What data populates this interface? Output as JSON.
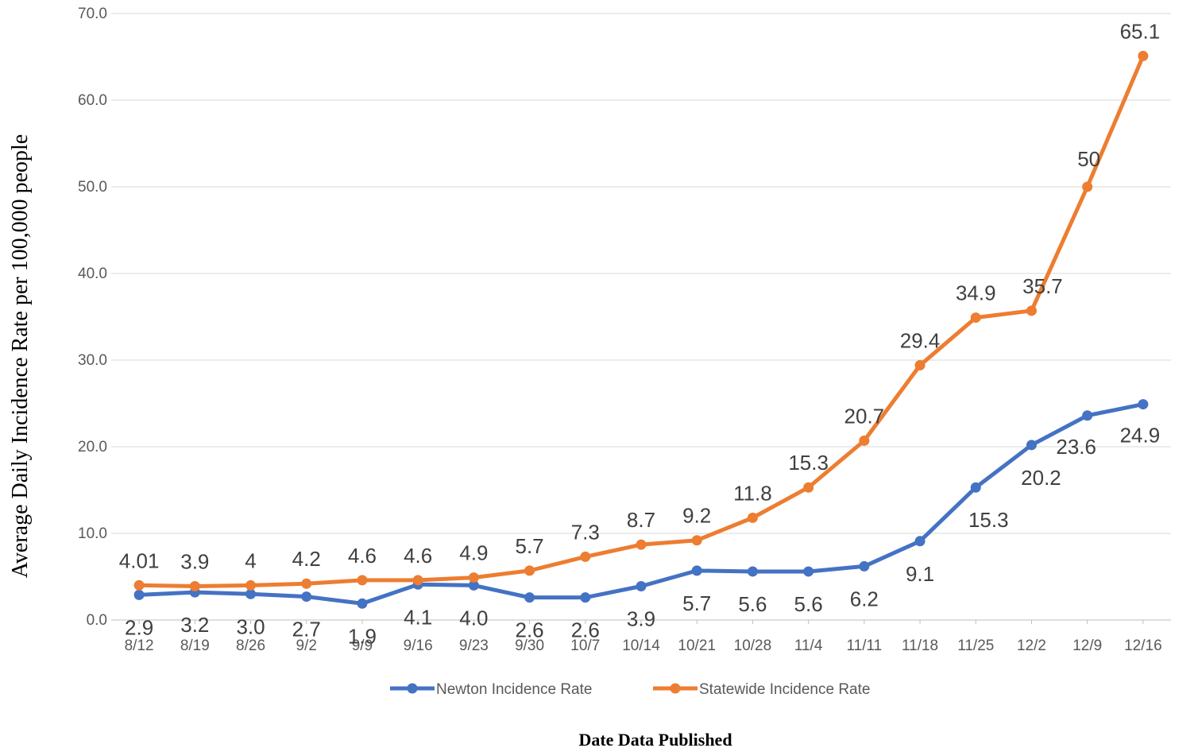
{
  "chart_data": {
    "type": "line",
    "title": "",
    "xlabel": "Date Data Published",
    "ylabel": "Average Daily Incidence Rate per 100,000 people",
    "ylim": [
      0,
      70
    ],
    "yticks": [
      "0.0",
      "10.0",
      "20.0",
      "30.0",
      "40.0",
      "50.0",
      "60.0",
      "70.0"
    ],
    "grid": true,
    "legend_position": "bottom",
    "categories": [
      "8/12",
      "8/19",
      "8/26",
      "9/2",
      "9/9",
      "9/16",
      "9/23",
      "9/30",
      "10/7",
      "10/14",
      "10/21",
      "10/28",
      "11/4",
      "11/11",
      "11/18",
      "11/25",
      "12/2",
      "12/9",
      "12/16"
    ],
    "series": [
      {
        "name": "Newton Incidence Rate",
        "color": "#4472C4",
        "values": [
          2.9,
          3.2,
          3.0,
          2.7,
          1.9,
          4.1,
          4.0,
          2.6,
          2.6,
          3.9,
          5.7,
          5.6,
          5.6,
          6.2,
          9.1,
          15.3,
          20.2,
          23.6,
          24.9
        ],
        "labels": [
          "2.9",
          "3.2",
          "3.0",
          "2.7",
          "1.9",
          "4.1",
          "4.0",
          "2.6",
          "2.6",
          "3.9",
          "5.7",
          "5.6",
          "5.6",
          "6.2",
          "9.1",
          "15.3",
          "20.2",
          "23.6",
          "24.9"
        ]
      },
      {
        "name": "Statewide Incidence Rate",
        "color": "#ED7D31",
        "values": [
          4.01,
          3.9,
          4,
          4.2,
          4.6,
          4.6,
          4.9,
          5.7,
          7.3,
          8.7,
          9.2,
          11.8,
          15.3,
          20.7,
          29.4,
          34.9,
          35.7,
          50,
          65.1
        ],
        "labels": [
          "4.01",
          "3.9",
          "4",
          "4.2",
          "4.6",
          "4.6",
          "4.9",
          "5.7",
          "7.3",
          "8.7",
          "9.2",
          "11.8",
          "15.3",
          "20.7",
          "29.4",
          "34.9",
          "35.7",
          "50",
          "65.1"
        ]
      }
    ]
  }
}
